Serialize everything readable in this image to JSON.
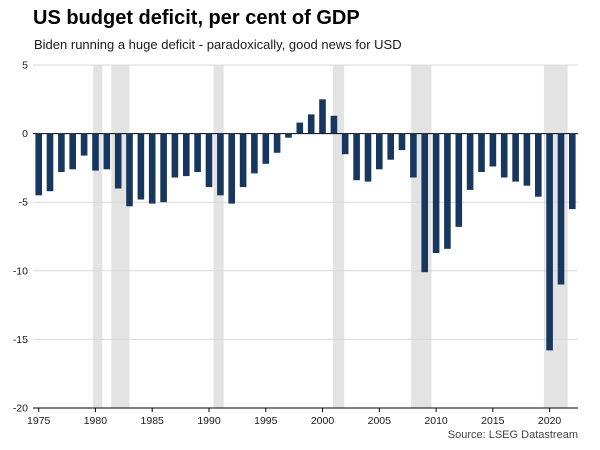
{
  "header": {
    "title": "US budget deficit, per cent of GDP",
    "subtitle": "Biden running a huge deficit - paradoxically, good news for USD"
  },
  "source": "Source: LSEG Datastream",
  "chart_data": {
    "type": "bar",
    "title": "US budget deficit, per cent of GDP",
    "subtitle": "Biden running a huge deficit - paradoxically, good news for USD",
    "xlabel": "",
    "ylabel": "per cent of GDP",
    "ylim": [
      -20,
      5
    ],
    "y_ticks": [
      5,
      0,
      -5,
      -10,
      -15,
      -20
    ],
    "x_ticks": [
      1975,
      1980,
      1985,
      1990,
      1995,
      2000,
      2005,
      2010,
      2015,
      2020
    ],
    "x": [
      1975,
      1976,
      1977,
      1978,
      1979,
      1980,
      1981,
      1982,
      1983,
      1984,
      1985,
      1986,
      1987,
      1988,
      1989,
      1990,
      1991,
      1992,
      1993,
      1994,
      1995,
      1996,
      1997,
      1998,
      1999,
      2000,
      2001,
      2002,
      2003,
      2004,
      2005,
      2006,
      2007,
      2008,
      2009,
      2010,
      2011,
      2012,
      2013,
      2014,
      2015,
      2016,
      2017,
      2018,
      2019,
      2020,
      2021,
      2022
    ],
    "values": [
      -4.5,
      -4.2,
      -2.8,
      -2.6,
      -1.6,
      -2.7,
      -2.6,
      -4.0,
      -5.3,
      -4.8,
      -5.1,
      -5.0,
      -3.2,
      -3.1,
      -2.8,
      -3.9,
      -4.5,
      -5.1,
      -3.9,
      -2.9,
      -2.2,
      -1.4,
      -0.3,
      0.8,
      1.4,
      2.5,
      1.3,
      -1.5,
      -3.4,
      -3.5,
      -2.6,
      -1.9,
      -1.2,
      -3.2,
      -10.1,
      -8.7,
      -8.4,
      -6.8,
      -4.1,
      -2.8,
      -2.4,
      -3.2,
      -3.5,
      -3.8,
      -4.6,
      -15.8,
      -11.0,
      -5.5
    ],
    "recession_bands": [
      [
        1979.8,
        1980.6
      ],
      [
        1981.4,
        1983.0
      ],
      [
        1990.4,
        1991.3
      ],
      [
        2000.9,
        2001.9
      ],
      [
        2007.8,
        2009.6
      ],
      [
        2019.5,
        2021.6
      ]
    ],
    "bar_color": "#17375e",
    "band_color": "#e3e3e3",
    "grid_color": "#d9d9d9",
    "axis_color": "#000000",
    "grid": "on",
    "legend_position": "none"
  }
}
